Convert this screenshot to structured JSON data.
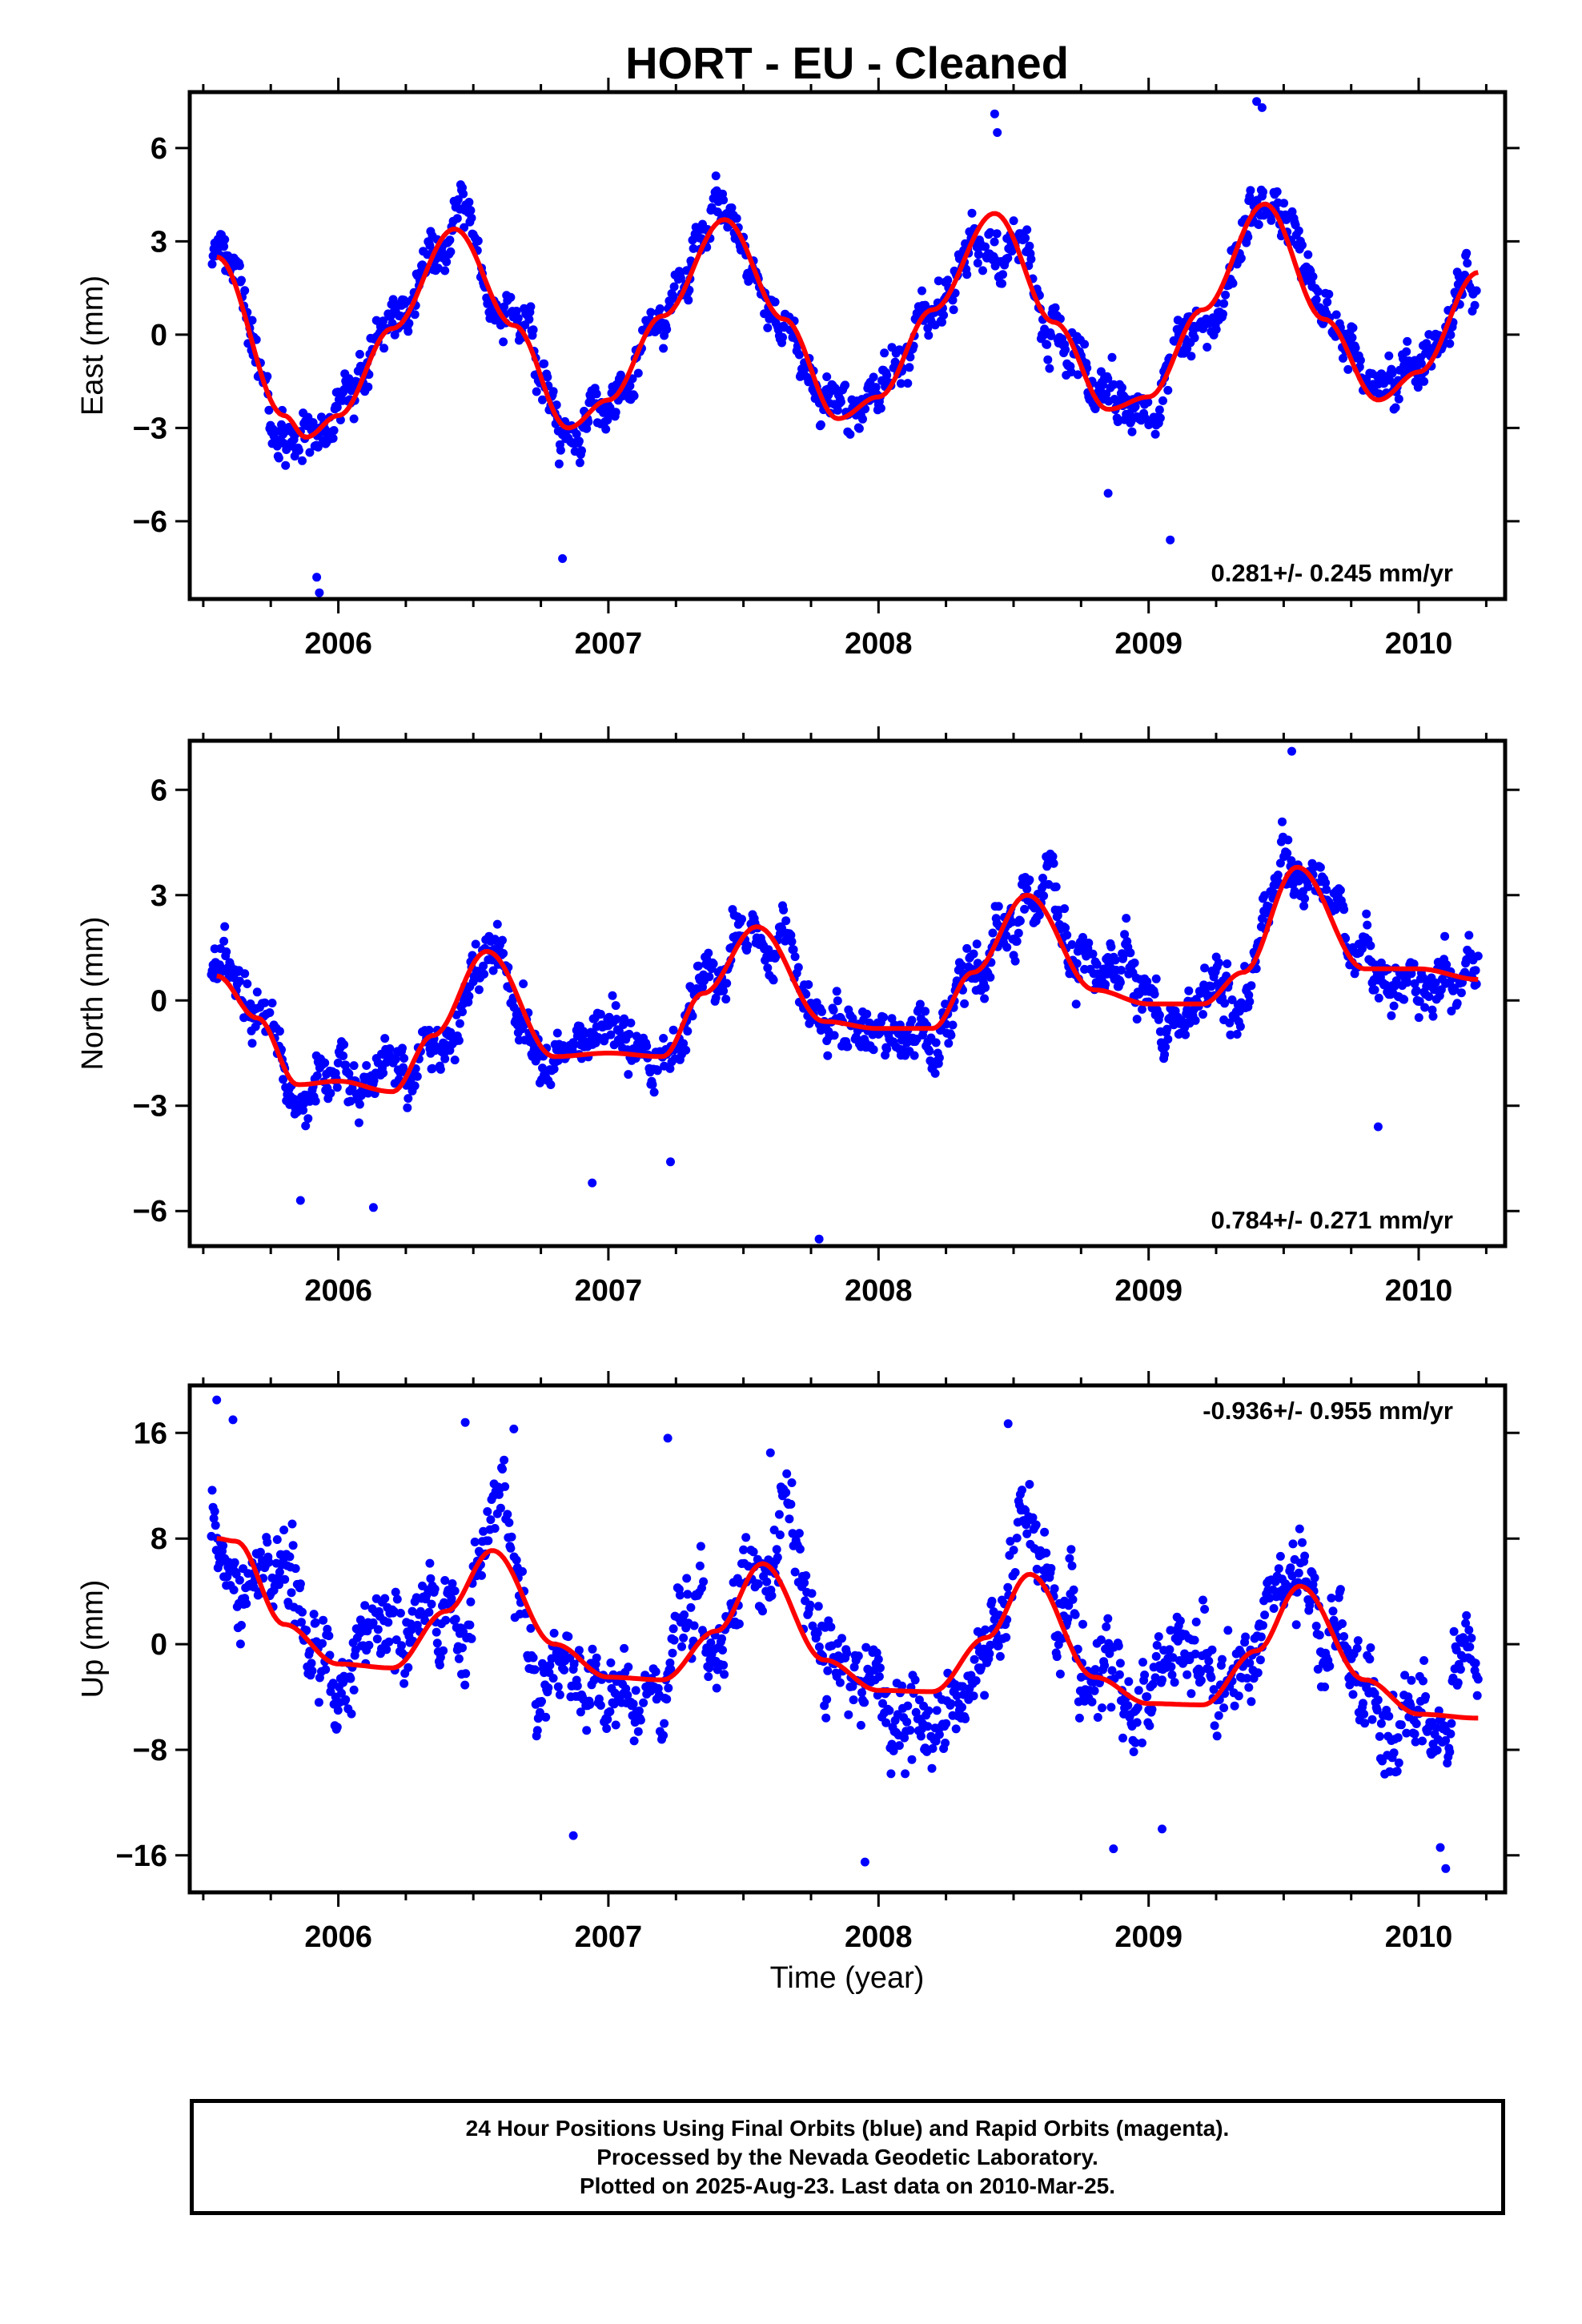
{
  "title": "HORT  - EU - Cleaned",
  "xlabel": "Time (year)",
  "footer": {
    "line1": "24 Hour Positions Using Final Orbits (blue) and Rapid Orbits (magenta).",
    "line2": "Processed by the Nevada Geodetic Laboratory.",
    "line3": "Plotted on 2025-Aug-23. Last data on 2010-Mar-25."
  },
  "colors": {
    "points": "#0000ff",
    "model": "#ff0000",
    "axes": "#000000"
  },
  "chart_data": [
    {
      "type": "scatter",
      "name": "east",
      "ylabel": "East (mm)",
      "rate_label": "0.281+/- 0.245 mm/yr",
      "rate_position": "bottom-right",
      "xlim": [
        2005.45,
        2010.32
      ],
      "ylim": [
        -8.5,
        7.8
      ],
      "x_ticks": [
        2006,
        2007,
        2008,
        2009,
        2010
      ],
      "y_ticks": [
        -6,
        -3,
        0,
        3,
        6
      ],
      "y_tick_labels": [
        "−6",
        "−3",
        "0",
        "3",
        "6"
      ],
      "grid": false,
      "model": {
        "x": [
          2005.55,
          2005.8,
          2005.88,
          2006.0,
          2006.2,
          2006.43,
          2006.65,
          2006.85,
          2007.0,
          2007.2,
          2007.43,
          2007.65,
          2007.85,
          2008.0,
          2008.2,
          2008.43,
          2008.65,
          2008.85,
          2009.0,
          2009.2,
          2009.43,
          2009.65,
          2009.85,
          2010.0,
          2010.22
        ],
        "y": [
          2.5,
          -2.6,
          -3.3,
          -2.6,
          0.2,
          3.4,
          0.3,
          -3.0,
          -2.1,
          0.6,
          3.7,
          0.5,
          -2.7,
          -2.0,
          0.8,
          3.9,
          0.4,
          -2.4,
          -2.0,
          0.8,
          4.2,
          0.5,
          -2.1,
          -1.2,
          2.0
        ]
      },
      "scatter_noise": 1.0,
      "outliers": {
        "x": [
          2005.92,
          2005.93,
          2006.83,
          2008.85,
          2009.08,
          2009.4,
          2009.42,
          2008.43,
          2008.44
        ],
        "y": [
          -7.8,
          -8.3,
          -7.2,
          -5.1,
          -6.6,
          7.5,
          7.3,
          7.1,
          6.5
        ]
      }
    },
    {
      "type": "scatter",
      "name": "north",
      "ylabel": "North (mm)",
      "rate_label": "0.784+/- 0.271 mm/yr",
      "rate_position": "bottom-right",
      "xlim": [
        2005.45,
        2010.32
      ],
      "ylim": [
        -7.0,
        7.4
      ],
      "x_ticks": [
        2006,
        2007,
        2008,
        2009,
        2010
      ],
      "y_ticks": [
        -6,
        -3,
        0,
        3,
        6
      ],
      "y_tick_labels": [
        "−6",
        "−3",
        "0",
        "3",
        "6"
      ],
      "grid": false,
      "model": {
        "x": [
          2005.55,
          2005.7,
          2005.85,
          2006.0,
          2006.2,
          2006.35,
          2006.55,
          2006.8,
          2007.0,
          2007.2,
          2007.35,
          2007.55,
          2007.8,
          2008.0,
          2008.2,
          2008.35,
          2008.55,
          2008.8,
          2009.0,
          2009.2,
          2009.35,
          2009.55,
          2009.8,
          2010.0,
          2010.22
        ],
        "y": [
          0.7,
          -0.5,
          -2.4,
          -2.3,
          -2.6,
          -1.0,
          1.4,
          -1.6,
          -1.5,
          -1.6,
          0.2,
          2.1,
          -0.6,
          -0.8,
          -0.8,
          0.8,
          3.0,
          0.3,
          -0.1,
          -0.1,
          0.8,
          3.8,
          0.9,
          0.9,
          0.6
        ]
      },
      "scatter_noise": 1.0,
      "outliers": {
        "x": [
          2005.86,
          2006.13,
          2006.94,
          2007.23,
          2007.78,
          2009.53,
          2009.85
        ],
        "y": [
          -5.7,
          -5.9,
          -5.2,
          -4.6,
          -6.8,
          7.1,
          -3.6
        ]
      }
    },
    {
      "type": "scatter",
      "name": "up",
      "ylabel": "Up (mm)",
      "rate_label": "-0.936+/- 0.955 mm/yr",
      "rate_position": "top-right",
      "xlim": [
        2005.45,
        2010.32
      ],
      "ylim": [
        -18.8,
        19.6
      ],
      "x_ticks": [
        2006,
        2007,
        2008,
        2009,
        2010
      ],
      "y_ticks": [
        -16,
        -8,
        0,
        8,
        16
      ],
      "y_tick_labels": [
        "−16",
        "−8",
        "0",
        "8",
        "16"
      ],
      "grid": false,
      "model": {
        "x": [
          2005.55,
          2005.62,
          2005.8,
          2006.0,
          2006.2,
          2006.4,
          2006.57,
          2006.8,
          2007.0,
          2007.2,
          2007.4,
          2007.57,
          2007.8,
          2008.0,
          2008.2,
          2008.4,
          2008.56,
          2008.8,
          2009.0,
          2009.2,
          2009.4,
          2009.56,
          2009.8,
          2010.0,
          2010.22
        ],
        "y": [
          8.0,
          7.8,
          1.5,
          -1.5,
          -1.8,
          2.5,
          7.1,
          0.0,
          -2.5,
          -2.7,
          1.0,
          6.1,
          -1.2,
          -3.5,
          -3.6,
          0.5,
          5.3,
          -2.5,
          -4.5,
          -4.6,
          -0.5,
          4.4,
          -2.7,
          -5.3,
          -5.6
        ]
      },
      "scatter_noise": 4.3,
      "outliers": {
        "x": [
          2005.55,
          2005.61,
          2006.47,
          2006.65,
          2006.87,
          2007.22,
          2007.6,
          2007.95,
          2008.48,
          2008.87,
          2009.05,
          2010.08,
          2010.1
        ],
        "y": [
          18.5,
          17.0,
          16.8,
          16.3,
          -14.5,
          15.6,
          14.5,
          -16.5,
          16.7,
          -15.5,
          -14.0,
          -15.4,
          -17.0
        ]
      }
    }
  ]
}
